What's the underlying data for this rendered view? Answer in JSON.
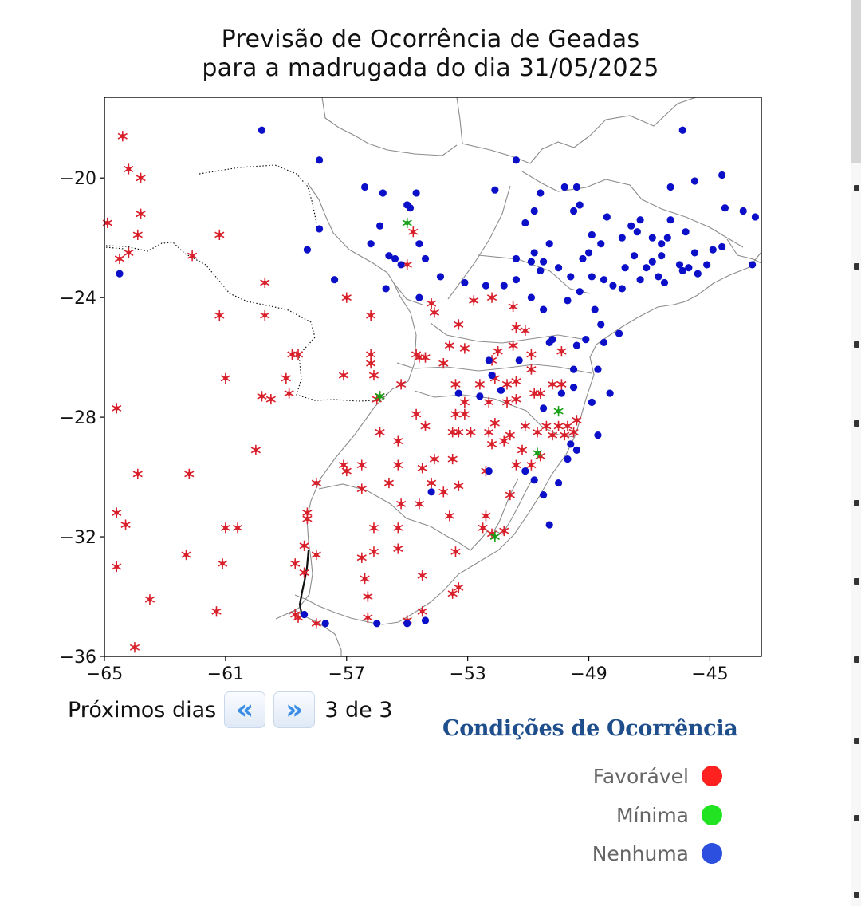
{
  "title": {
    "line1": "Previsão de Ocorrência de Geadas",
    "line2": "para a madrugada do dia 31/05/2025"
  },
  "navigation": {
    "label": "Próximos dias",
    "prev_icon": "double-chevron-left",
    "next_icon": "double-chevron-right",
    "prev_glyph": "«",
    "next_glyph": "»",
    "page_indicator": "3 de 3"
  },
  "legend": {
    "title": "Condições de Ocorrência",
    "items": [
      {
        "label": "Favorável",
        "color": "#ff2020"
      },
      {
        "label": "Mínima",
        "color": "#22e322"
      },
      {
        "label": "Nenhuma",
        "color": "#2c4fe0"
      }
    ]
  },
  "chart_data": {
    "type": "scatter",
    "title": "Previsão de Ocorrência de Geadas para a madrugada do dia 31/05/2025",
    "xlim": [
      -65,
      -43.3
    ],
    "ylim": [
      -36,
      -17.3
    ],
    "x_ticks": [
      -65,
      -61,
      -57,
      -53,
      -49,
      -45
    ],
    "y_ticks": [
      -20,
      -24,
      -28,
      -32,
      -36
    ],
    "x_tick_labels": [
      "−65",
      "−61",
      "−57",
      "−53",
      "−49",
      "−45"
    ],
    "y_tick_labels": [
      "−20",
      "−24",
      "−28",
      "−32",
      "−36"
    ],
    "grid": false,
    "colors": {
      "favoravel": "#d81f2a",
      "minima": "#19a019",
      "nenhuma": "#0b10c8"
    },
    "series": [
      {
        "name": "Favorável",
        "marker": "snowflake",
        "points": [
          [
            -64.4,
            -18.6
          ],
          [
            -64.2,
            -19.7
          ],
          [
            -63.8,
            -20.0
          ],
          [
            -64.9,
            -21.5
          ],
          [
            -63.8,
            -21.2
          ],
          [
            -63.9,
            -21.9
          ],
          [
            -64.2,
            -22.5
          ],
          [
            -64.5,
            -22.7
          ],
          [
            -62.1,
            -22.6
          ],
          [
            -61.2,
            -21.9
          ],
          [
            -61.2,
            -24.6
          ],
          [
            -59.7,
            -23.5
          ],
          [
            -59.7,
            -24.6
          ],
          [
            -58.8,
            -25.9
          ],
          [
            -58.6,
            -25.9
          ],
          [
            -57.0,
            -24.0
          ],
          [
            -56.2,
            -24.6
          ],
          [
            -56.2,
            -25.9
          ],
          [
            -56.2,
            -26.2
          ],
          [
            -56.1,
            -26.6
          ],
          [
            -56.0,
            -27.4
          ],
          [
            -55.9,
            -27.3
          ],
          [
            -54.8,
            -21.8
          ],
          [
            -55.0,
            -22.9
          ],
          [
            -59.0,
            -26.7
          ],
          [
            -58.9,
            -27.2
          ],
          [
            -59.8,
            -27.3
          ],
          [
            -59.5,
            -27.4
          ],
          [
            -57.1,
            -26.6
          ],
          [
            -61.0,
            -26.7
          ],
          [
            -55.2,
            -26.9
          ],
          [
            -54.7,
            -25.9
          ],
          [
            -54.4,
            -26.0
          ],
          [
            -54.6,
            -26.0
          ],
          [
            -54.1,
            -24.5
          ],
          [
            -54.2,
            -24.2
          ],
          [
            -53.3,
            -24.9
          ],
          [
            -52.8,
            -24.1
          ],
          [
            -52.2,
            -24.0
          ],
          [
            -51.5,
            -24.3
          ],
          [
            -51.4,
            -25.0
          ],
          [
            -51.5,
            -25.6
          ],
          [
            -51.1,
            -25.1
          ],
          [
            -50.9,
            -25.9
          ],
          [
            -53.6,
            -25.6
          ],
          [
            -53.1,
            -25.7
          ],
          [
            -52.0,
            -25.8
          ],
          [
            -52.2,
            -26.1
          ],
          [
            -53.8,
            -26.2
          ],
          [
            -53.4,
            -26.9
          ],
          [
            -52.6,
            -26.9
          ],
          [
            -52.1,
            -26.7
          ],
          [
            -51.7,
            -26.9
          ],
          [
            -51.4,
            -26.8
          ],
          [
            -50.9,
            -26.4
          ],
          [
            -50.8,
            -27.2
          ],
          [
            -50.6,
            -27.2
          ],
          [
            -50.2,
            -26.9
          ],
          [
            -49.9,
            -26.9
          ],
          [
            -49.9,
            -25.8
          ],
          [
            -53.1,
            -27.5
          ],
          [
            -52.3,
            -27.5
          ],
          [
            -51.7,
            -27.5
          ],
          [
            -51.4,
            -27.4
          ],
          [
            -53.4,
            -27.9
          ],
          [
            -53.1,
            -27.9
          ],
          [
            -54.7,
            -27.9
          ],
          [
            -52.1,
            -28.2
          ],
          [
            -51.1,
            -28.3
          ],
          [
            -50.4,
            -28.3
          ],
          [
            -50.0,
            -28.3
          ],
          [
            -49.7,
            -28.3
          ],
          [
            -49.4,
            -28.1
          ],
          [
            -49.5,
            -28.5
          ],
          [
            -49.8,
            -28.6
          ],
          [
            -50.2,
            -28.6
          ],
          [
            -50.7,
            -28.5
          ],
          [
            -51.6,
            -28.6
          ],
          [
            -52.3,
            -28.5
          ],
          [
            -52.9,
            -28.5
          ],
          [
            -53.3,
            -28.5
          ],
          [
            -53.5,
            -28.5
          ],
          [
            -54.4,
            -28.3
          ],
          [
            -55.3,
            -28.8
          ],
          [
            -55.9,
            -28.5
          ],
          [
            -52.2,
            -28.9
          ],
          [
            -51.8,
            -28.8
          ],
          [
            -51.2,
            -29.1
          ],
          [
            -50.6,
            -29.3
          ],
          [
            -50.9,
            -29.6
          ],
          [
            -51.4,
            -29.6
          ],
          [
            -53.5,
            -29.4
          ],
          [
            -54.1,
            -29.4
          ],
          [
            -54.5,
            -29.7
          ],
          [
            -55.3,
            -29.6
          ],
          [
            -56.5,
            -29.6
          ],
          [
            -57.1,
            -29.6
          ],
          [
            -57.0,
            -29.8
          ],
          [
            -58.0,
            -30.2
          ],
          [
            -56.5,
            -30.4
          ],
          [
            -55.6,
            -30.2
          ],
          [
            -54.2,
            -30.2
          ],
          [
            -53.3,
            -30.3
          ],
          [
            -53.8,
            -30.5
          ],
          [
            -52.4,
            -29.8
          ],
          [
            -51.6,
            -30.6
          ],
          [
            -55.2,
            -30.9
          ],
          [
            -54.6,
            -30.9
          ],
          [
            -53.6,
            -31.3
          ],
          [
            -52.4,
            -31.3
          ],
          [
            -51.8,
            -31.8
          ],
          [
            -56.1,
            -31.7
          ],
          [
            -55.3,
            -31.7
          ],
          [
            -58.3,
            -31.2
          ],
          [
            -58.3,
            -31.4
          ],
          [
            -58.4,
            -32.3
          ],
          [
            -58.0,
            -32.6
          ],
          [
            -58.7,
            -32.9
          ],
          [
            -58.4,
            -33.2
          ],
          [
            -58.7,
            -34.6
          ],
          [
            -58.6,
            -34.7
          ],
          [
            -58.0,
            -34.9
          ],
          [
            -56.5,
            -32.7
          ],
          [
            -56.1,
            -32.5
          ],
          [
            -56.4,
            -33.4
          ],
          [
            -56.3,
            -34.0
          ],
          [
            -56.3,
            -34.7
          ],
          [
            -55.0,
            -34.8
          ],
          [
            -55.3,
            -32.4
          ],
          [
            -54.5,
            -33.3
          ],
          [
            -53.4,
            -32.5
          ],
          [
            -53.3,
            -33.7
          ],
          [
            -53.5,
            -33.9
          ],
          [
            -54.5,
            -34.5
          ],
          [
            -52.5,
            -31.7
          ],
          [
            -52.2,
            -31.9
          ],
          [
            -63.9,
            -29.9
          ],
          [
            -62.2,
            -29.9
          ],
          [
            -60.0,
            -29.1
          ],
          [
            -64.6,
            -31.2
          ],
          [
            -64.3,
            -31.6
          ],
          [
            -64.6,
            -33.0
          ],
          [
            -63.5,
            -34.1
          ],
          [
            -62.3,
            -32.6
          ],
          [
            -61.0,
            -31.7
          ],
          [
            -60.6,
            -31.7
          ],
          [
            -61.1,
            -32.9
          ],
          [
            -61.3,
            -34.5
          ],
          [
            -64.0,
            -35.7
          ],
          [
            -64.6,
            -27.7
          ]
        ]
      },
      {
        "name": "Mínima",
        "marker": "snowflake",
        "points": [
          [
            -55.0,
            -21.5
          ],
          [
            -55.9,
            -27.3
          ],
          [
            -50.0,
            -27.8
          ],
          [
            -50.7,
            -29.2
          ],
          [
            -52.1,
            -32.0
          ]
        ]
      },
      {
        "name": "Nenhuma",
        "marker": "dot",
        "points": [
          [
            -64.5,
            -23.2
          ],
          [
            -59.8,
            -18.4
          ],
          [
            -57.9,
            -19.4
          ],
          [
            -57.9,
            -21.7
          ],
          [
            -58.3,
            -22.4
          ],
          [
            -57.4,
            -23.4
          ],
          [
            -56.4,
            -20.3
          ],
          [
            -55.8,
            -20.5
          ],
          [
            -54.9,
            -21.0
          ],
          [
            -55.0,
            -20.9
          ],
          [
            -54.7,
            -20.5
          ],
          [
            -56.2,
            -22.2
          ],
          [
            -55.9,
            -21.6
          ],
          [
            -55.4,
            -22.7
          ],
          [
            -55.6,
            -22.6
          ],
          [
            -55.2,
            -22.9
          ],
          [
            -54.6,
            -22.2
          ],
          [
            -54.4,
            -22.7
          ],
          [
            -53.9,
            -23.3
          ],
          [
            -55.7,
            -23.7
          ],
          [
            -54.6,
            -24.0
          ],
          [
            -53.1,
            -23.5
          ],
          [
            -52.1,
            -20.4
          ],
          [
            -51.4,
            -19.4
          ],
          [
            -45.9,
            -18.4
          ],
          [
            -44.6,
            -19.9
          ],
          [
            -43.9,
            -21.1
          ],
          [
            -43.5,
            -21.3
          ],
          [
            -44.5,
            -21.0
          ],
          [
            -45.5,
            -20.1
          ],
          [
            -46.3,
            -20.3
          ],
          [
            -49.4,
            -20.3
          ],
          [
            -49.8,
            -20.3
          ],
          [
            -50.6,
            -20.5
          ],
          [
            -50.8,
            -21.1
          ],
          [
            -51.1,
            -21.5
          ],
          [
            -50.3,
            -22.2
          ],
          [
            -49.5,
            -21.1
          ],
          [
            -49.3,
            -20.9
          ],
          [
            -48.9,
            -21.9
          ],
          [
            -48.4,
            -21.3
          ],
          [
            -47.6,
            -21.6
          ],
          [
            -47.4,
            -21.8
          ],
          [
            -46.9,
            -22.0
          ],
          [
            -46.3,
            -21.4
          ],
          [
            -46.6,
            -22.2
          ],
          [
            -45.8,
            -21.8
          ],
          [
            -45.5,
            -22.5
          ],
          [
            -44.9,
            -22.4
          ],
          [
            -44.6,
            -22.3
          ],
          [
            -43.6,
            -22.9
          ],
          [
            -45.1,
            -22.9
          ],
          [
            -45.4,
            -23.2
          ],
          [
            -46.0,
            -22.9
          ],
          [
            -46.5,
            -23.5
          ],
          [
            -46.7,
            -23.3
          ],
          [
            -47.1,
            -23.0
          ],
          [
            -47.3,
            -23.4
          ],
          [
            -47.9,
            -23.7
          ],
          [
            -48.2,
            -23.6
          ],
          [
            -48.9,
            -23.3
          ],
          [
            -49.3,
            -23.8
          ],
          [
            -49.6,
            -23.3
          ],
          [
            -50.0,
            -23.0
          ],
          [
            -50.6,
            -23.1
          ],
          [
            -50.9,
            -22.8
          ],
          [
            -51.4,
            -22.7
          ],
          [
            -51.4,
            -23.4
          ],
          [
            -52.4,
            -23.6
          ],
          [
            -50.9,
            -24.0
          ],
          [
            -50.5,
            -24.4
          ],
          [
            -49.7,
            -24.1
          ],
          [
            -48.8,
            -24.4
          ],
          [
            -48.6,
            -24.9
          ],
          [
            -48.0,
            -25.2
          ],
          [
            -49.1,
            -25.4
          ],
          [
            -49.4,
            -25.6
          ],
          [
            -48.5,
            -25.5
          ],
          [
            -50.2,
            -25.4
          ],
          [
            -49.5,
            -26.4
          ],
          [
            -48.7,
            -26.4
          ],
          [
            -48.3,
            -27.2
          ],
          [
            -49.5,
            -27.0
          ],
          [
            -49.9,
            -27.2
          ],
          [
            -48.9,
            -27.5
          ],
          [
            -50.5,
            -27.7
          ],
          [
            -51.9,
            -27.1
          ],
          [
            -52.6,
            -27.3
          ],
          [
            -53.3,
            -27.2
          ],
          [
            -52.2,
            -26.6
          ],
          [
            -51.3,
            -26.1
          ],
          [
            -52.3,
            -26.1
          ],
          [
            -50.3,
            -25.5
          ],
          [
            -51.1,
            -29.8
          ],
          [
            -50.8,
            -30.1
          ],
          [
            -50.5,
            -30.6
          ],
          [
            -50.0,
            -30.2
          ],
          [
            -49.7,
            -29.4
          ],
          [
            -49.4,
            -29.1
          ],
          [
            -49.6,
            -28.9
          ],
          [
            -48.7,
            -28.6
          ],
          [
            -50.3,
            -31.6
          ],
          [
            -54.4,
            -34.8
          ],
          [
            -55.0,
            -34.9
          ],
          [
            -56.0,
            -34.9
          ],
          [
            -57.7,
            -34.9
          ],
          [
            -58.4,
            -34.6
          ],
          [
            -54.2,
            -30.5
          ],
          [
            -52.3,
            -29.8
          ],
          [
            -47.8,
            -23.0
          ],
          [
            -47.5,
            -22.6
          ],
          [
            -46.9,
            -22.8
          ],
          [
            -46.6,
            -22.6
          ],
          [
            -45.9,
            -23.1
          ],
          [
            -45.7,
            -23.0
          ],
          [
            -48.5,
            -23.4
          ],
          [
            -50.5,
            -22.8
          ],
          [
            -50.8,
            -22.5
          ],
          [
            -49.2,
            -22.7
          ],
          [
            -47.9,
            -22.0
          ],
          [
            -47.3,
            -21.4
          ],
          [
            -46.4,
            -22.0
          ],
          [
            -48.6,
            -22.2
          ],
          [
            -49.0,
            -22.5
          ],
          [
            -51.8,
            -23.6
          ]
        ]
      }
    ]
  }
}
